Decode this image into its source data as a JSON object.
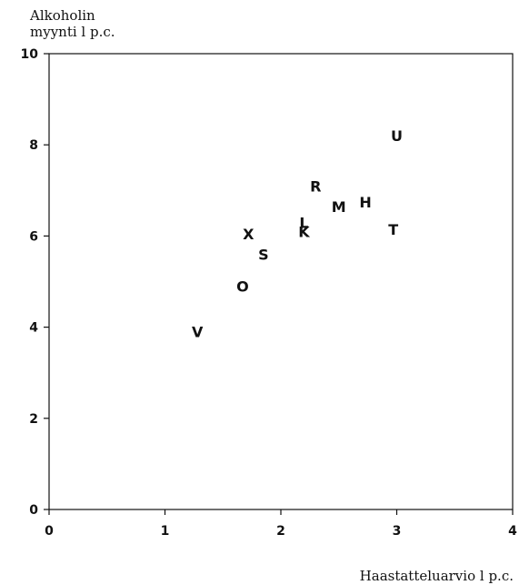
{
  "chart_data": {
    "type": "scatter",
    "xlabel": "Haastatteluarvio l p.c.",
    "ylabel_line1": "Alkoholin",
    "ylabel_line2": "myynti l p.c.",
    "xlim": [
      0,
      4
    ],
    "ylim": [
      0,
      10
    ],
    "xticks": [
      0,
      1,
      2,
      3,
      4
    ],
    "yticks": [
      0,
      2,
      4,
      6,
      8,
      10
    ],
    "grid": false,
    "points": [
      {
        "label": "U",
        "x": 3.0,
        "y": 8.2
      },
      {
        "label": "R",
        "x": 2.3,
        "y": 7.1
      },
      {
        "label": "M",
        "x": 2.5,
        "y": 6.65
      },
      {
        "label": "H",
        "x": 2.73,
        "y": 6.75
      },
      {
        "label": "L",
        "x": 2.2,
        "y": 6.3
      },
      {
        "label": "K",
        "x": 2.2,
        "y": 6.1
      },
      {
        "label": "T",
        "x": 2.97,
        "y": 6.15
      },
      {
        "label": "X",
        "x": 1.72,
        "y": 6.05
      },
      {
        "label": "S",
        "x": 1.85,
        "y": 5.6
      },
      {
        "label": "O",
        "x": 1.67,
        "y": 4.9
      },
      {
        "label": "V",
        "x": 1.28,
        "y": 3.9
      }
    ]
  }
}
